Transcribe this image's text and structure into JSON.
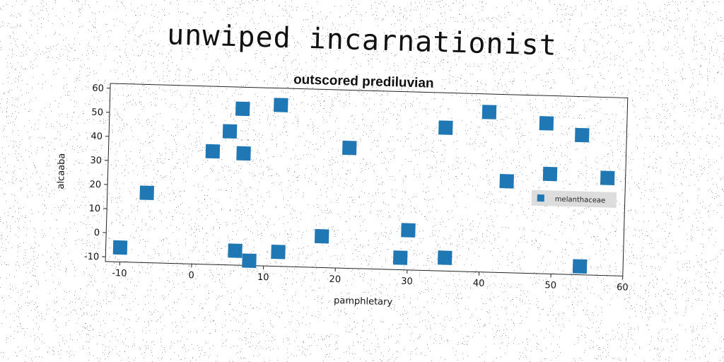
{
  "title": "unwiped incarnationist",
  "chart_data": {
    "type": "scatter",
    "title": "outscored prediluvian",
    "xlabel": "pamphletary",
    "ylabel": "alcaaba",
    "xlim": [
      -12,
      60
    ],
    "ylim": [
      -12,
      62
    ],
    "xticks": [
      -10,
      0,
      10,
      20,
      30,
      40,
      50,
      60
    ],
    "yticks": [
      -10,
      0,
      10,
      20,
      30,
      40,
      50,
      60
    ],
    "grid": false,
    "legend_position": "right",
    "series": [
      {
        "name": "melanthaceae",
        "color": "#1f77b4",
        "marker": "square",
        "points": [
          {
            "x": -10,
            "y": -6
          },
          {
            "x": -6.5,
            "y": 17
          },
          {
            "x": 2.5,
            "y": 35
          },
          {
            "x": 4.8,
            "y": 43.5
          },
          {
            "x": 6.5,
            "y": 53
          },
          {
            "x": 6.8,
            "y": 34.5
          },
          {
            "x": 6,
            "y": -6
          },
          {
            "x": 8,
            "y": -10
          },
          {
            "x": 11.8,
            "y": 55
          },
          {
            "x": 12,
            "y": -6
          },
          {
            "x": 18,
            "y": 1
          },
          {
            "x": 21.5,
            "y": 38
          },
          {
            "x": 29,
            "y": -7
          },
          {
            "x": 30,
            "y": 4.5
          },
          {
            "x": 34.8,
            "y": 47.5
          },
          {
            "x": 35.2,
            "y": -6.5
          },
          {
            "x": 40.8,
            "y": 54.5
          },
          {
            "x": 43.5,
            "y": 26
          },
          {
            "x": 48.8,
            "y": 50.5
          },
          {
            "x": 49.5,
            "y": 29.5
          },
          {
            "x": 53.8,
            "y": 46
          },
          {
            "x": 54,
            "y": -8.5
          },
          {
            "x": 57.5,
            "y": 28.5
          }
        ]
      }
    ]
  }
}
